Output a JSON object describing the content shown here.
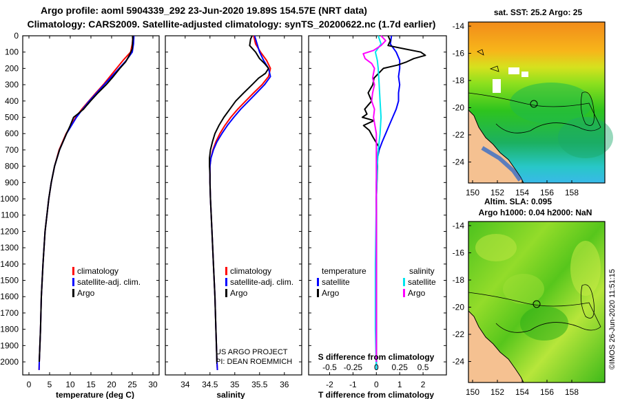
{
  "titles": {
    "line1": "Argo profile: aoml 5904339_292 23-Jun-2020 19.89S 154.57E (NRT data)",
    "line2": "Climatology: CARS2009. Satellite-adjusted climatology: synTS_20200622.nc (1.7d earlier)"
  },
  "colors": {
    "climatology": "#ff0000",
    "satellite": "#0000ff",
    "argo": "#000000",
    "sat_salinity": "#00e5ee",
    "argo_salinity": "#ff00ff",
    "land": "#f5c191"
  },
  "depth_axis": {
    "ticks": [
      0,
      100,
      200,
      300,
      400,
      500,
      600,
      700,
      800,
      900,
      1000,
      1100,
      1200,
      1300,
      1400,
      1500,
      1600,
      1700,
      1800,
      1900,
      2000
    ],
    "range": [
      0,
      2080
    ]
  },
  "chart_data": [
    {
      "type": "line",
      "id": "temperature",
      "xlabel": "temperature (deg C)",
      "xlim": [
        -1.5,
        31.5
      ],
      "xticks": [
        0,
        5,
        10,
        15,
        20,
        25,
        30
      ],
      "legend": [
        "climatology",
        "satellite-adj. clim.",
        "Argo"
      ],
      "series": [
        {
          "name": "climatology",
          "depth": [
            0,
            50,
            100,
            150,
            200,
            250,
            300,
            350,
            400,
            450,
            500,
            600,
            700,
            800,
            900,
            1000,
            1200,
            1400,
            1600,
            1800,
            2000,
            2050
          ],
          "values": [
            25.2,
            25.0,
            24.6,
            22.8,
            21.2,
            19.6,
            18.0,
            16.2,
            14.5,
            12.8,
            11.3,
            9.0,
            7.3,
            6.2,
            5.4,
            4.8,
            3.9,
            3.4,
            3.0,
            2.8,
            2.5,
            2.45
          ]
        },
        {
          "name": "satellite-adj. clim.",
          "depth": [
            0,
            50,
            100,
            150,
            200,
            250,
            300,
            350,
            400,
            450,
            500,
            600,
            700,
            800,
            900,
            1000,
            1200,
            1400,
            1600,
            1800,
            2000,
            2050
          ],
          "values": [
            25.4,
            25.3,
            25.0,
            23.6,
            21.8,
            20.0,
            18.2,
            16.4,
            14.6,
            13.0,
            11.5,
            9.1,
            7.4,
            6.2,
            5.4,
            4.8,
            3.9,
            3.4,
            3.0,
            2.8,
            2.5,
            2.45
          ]
        },
        {
          "name": "Argo",
          "depth": [
            0,
            30,
            80,
            120,
            160,
            200,
            250,
            300,
            350,
            400,
            450,
            480,
            500,
            550,
            600,
            700,
            800,
            900,
            1000,
            1200,
            1400,
            1600,
            1800,
            2000
          ],
          "values": [
            25.2,
            25.1,
            25.0,
            24.3,
            23.4,
            22.0,
            20.4,
            18.7,
            16.7,
            14.9,
            13.2,
            11.8,
            10.8,
            10.0,
            9.1,
            7.4,
            6.2,
            5.4,
            4.8,
            3.9,
            3.4,
            3.0,
            2.8,
            2.5
          ]
        }
      ]
    },
    {
      "type": "line",
      "id": "salinity",
      "xlabel": "salinity",
      "xlim": [
        33.6,
        36.35
      ],
      "xticks": [
        34,
        34.5,
        35,
        35.5,
        36
      ],
      "legend": [
        "climatology",
        "satellite-adj. clim.",
        "Argo"
      ],
      "annotation": [
        "US ARGO PROJECT",
        "PI: DEAN ROEMMICH"
      ],
      "series": [
        {
          "name": "climatology",
          "depth": [
            0,
            50,
            100,
            150,
            200,
            250,
            300,
            350,
            400,
            450,
            500,
            550,
            600,
            650,
            700,
            750,
            800,
            900,
            1000,
            1200,
            1400,
            1600,
            1800,
            2000,
            2050
          ],
          "values": [
            35.38,
            35.42,
            35.52,
            35.64,
            35.72,
            35.68,
            35.55,
            35.38,
            35.22,
            35.06,
            34.92,
            34.8,
            34.7,
            34.62,
            34.56,
            34.52,
            34.5,
            34.5,
            34.51,
            34.54,
            34.57,
            34.6,
            34.62,
            34.64,
            34.65
          ]
        },
        {
          "name": "satellite-adj. clim.",
          "depth": [
            0,
            50,
            100,
            150,
            200,
            250,
            300,
            350,
            400,
            450,
            500,
            550,
            600,
            650,
            700,
            750,
            800,
            900,
            1000,
            1200,
            1400,
            1600,
            1800,
            2000,
            2050
          ],
          "values": [
            35.4,
            35.45,
            35.5,
            35.58,
            35.68,
            35.72,
            35.6,
            35.44,
            35.28,
            35.12,
            34.98,
            34.85,
            34.74,
            34.64,
            34.57,
            34.52,
            34.5,
            34.5,
            34.51,
            34.54,
            34.57,
            34.6,
            34.62,
            34.64,
            34.65
          ]
        },
        {
          "name": "Argo",
          "depth": [
            0,
            20,
            60,
            100,
            140,
            170,
            200,
            230,
            260,
            300,
            350,
            400,
            450,
            500,
            550,
            600,
            650,
            700,
            750,
            800,
            850,
            900,
            1000,
            1200,
            1400,
            1600,
            1800,
            2000
          ],
          "values": [
            35.35,
            35.32,
            35.3,
            35.42,
            35.5,
            35.6,
            35.68,
            35.62,
            35.48,
            35.35,
            35.18,
            35.02,
            34.9,
            34.78,
            34.68,
            34.6,
            34.55,
            34.51,
            34.49,
            34.49,
            34.5,
            34.5,
            34.51,
            34.54,
            34.57,
            34.6,
            34.62,
            34.64
          ]
        }
      ]
    },
    {
      "type": "line",
      "id": "difference",
      "xlabel": "T difference from climatology",
      "xlabel_top": "S difference from climatology",
      "xlim": [
        -2.9,
        3.0
      ],
      "xticks": [
        -2,
        -1,
        0,
        1,
        2
      ],
      "xticks_top": [
        "-0.5",
        "-0.25",
        "0",
        "0.25",
        "0.5"
      ],
      "legend_left_title": "temperature",
      "legend_right_title": "salinity",
      "legend_left": [
        "satellite",
        "Argo"
      ],
      "legend_right": [
        "satellite",
        "Argo"
      ],
      "series": [
        {
          "name": "temperature satellite",
          "depth": [
            0,
            50,
            100,
            150,
            200,
            250,
            300,
            350,
            400,
            450,
            500,
            550,
            600,
            650,
            700,
            750,
            800,
            900,
            1000,
            1200,
            1400,
            1600,
            1800,
            2000,
            2050
          ],
          "values": [
            0.65,
            0.6,
            0.85,
            1.0,
            1.0,
            0.95,
            1.0,
            0.95,
            0.95,
            0.85,
            0.7,
            0.55,
            0.4,
            0.25,
            0.12,
            0.05,
            0.02,
            0.0,
            0.0,
            0.0,
            0.0,
            0.0,
            0.0,
            0.0,
            0.0
          ]
        },
        {
          "name": "temperature Argo",
          "depth": [
            0,
            30,
            60,
            80,
            100,
            120,
            140,
            160,
            180,
            200,
            230,
            260,
            300,
            350,
            400,
            450,
            480,
            500,
            520,
            550,
            580,
            620,
            680,
            740,
            800,
            1000,
            1400,
            2000
          ],
          "values": [
            0.5,
            0.6,
            0.5,
            1.2,
            1.9,
            2.1,
            1.6,
            1.3,
            0.9,
            0.3,
            0.1,
            -0.1,
            -0.15,
            -0.35,
            -0.2,
            -0.5,
            -0.4,
            -0.6,
            -0.1,
            -0.55,
            -0.3,
            -0.15,
            0.1,
            0.05,
            0.05,
            0.0,
            0.0,
            0.0
          ]
        },
        {
          "name": "salinity satellite",
          "depth": [
            0,
            50,
            100,
            150,
            200,
            300,
            400,
            500,
            600,
            700,
            800,
            1000,
            1400,
            1800,
            2050
          ],
          "values": [
            0.02,
            0.05,
            -0.01,
            0.01,
            0.02,
            0.03,
            0.04,
            0.05,
            0.04,
            0.02,
            0.01,
            0.0,
            -0.01,
            -0.01,
            0.0
          ]
        },
        {
          "name": "salinity Argo",
          "depth": [
            0,
            30,
            60,
            90,
            110,
            140,
            170,
            200,
            230,
            260,
            300,
            350,
            400,
            450,
            500,
            600,
            700,
            800,
            1000,
            1400,
            2000
          ],
          "values": [
            0.05,
            0.1,
            0.05,
            -0.03,
            -0.14,
            -0.12,
            -0.05,
            -0.02,
            -0.03,
            -0.04,
            -0.02,
            -0.04,
            -0.05,
            -0.02,
            -0.03,
            0.0,
            0.0,
            0.0,
            0.0,
            0.0,
            0.0
          ]
        }
      ]
    }
  ],
  "maps": {
    "sst": {
      "title": "sat. SST: 25.2 Argo: 25",
      "lat_ticks": [
        "-14",
        "-16",
        "-18",
        "-20",
        "-22",
        "-24"
      ],
      "lon_ticks": [
        "150",
        "152",
        "154",
        "156",
        "158"
      ]
    },
    "sla": {
      "title1": "Altim. SLA: 0.095",
      "title2": "Argo h1000: 0.04 h2000: NaN",
      "lat_ticks": [
        "-14",
        "-16",
        "-18",
        "-20",
        "-22",
        "-24"
      ],
      "lon_ticks": [
        "150",
        "152",
        "154",
        "156",
        "158"
      ]
    },
    "credit": "©IMOS 26-Jun-2020 11:51:15"
  }
}
